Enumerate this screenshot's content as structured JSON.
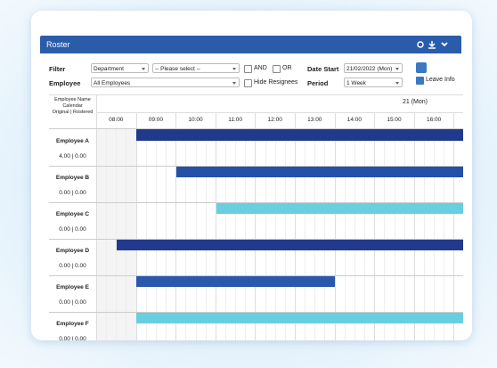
{
  "header": {
    "title": "Roster"
  },
  "filters": {
    "filter_label": "Filter",
    "department": "Department",
    "please_select": "-- Please select --",
    "and": "AND",
    "or": "OR",
    "date_start_label": "Date Start",
    "date_start": "21/02/2022 (Mon)",
    "employee_label": "Employee",
    "employee": "All Employees",
    "hide_resignees": "Hide Resignees",
    "period_label": "Period",
    "period": "1 Week",
    "leave_info": "Leave Info"
  },
  "grid": {
    "column_header": [
      "Employee Name",
      "Calendar",
      "Original | Rostered"
    ],
    "date": "21 (Mon)",
    "times": [
      "08:00",
      "09:00",
      "10:00",
      "11:00",
      "12:00",
      "13:00",
      "14:00",
      "15:00",
      "16:00"
    ]
  },
  "employees": [
    {
      "name": "Employee A",
      "hours": "4.00 | 0.00"
    },
    {
      "name": "Employee B",
      "hours": "0.00 | 0.00"
    },
    {
      "name": "Employee C",
      "hours": "0.00 | 0.00"
    },
    {
      "name": "Employee D",
      "hours": "0.00 | 0.00"
    },
    {
      "name": "Employee E",
      "hours": "0.00 | 0.00"
    },
    {
      "name": "Employee F",
      "hours": "0.00 | 0.00"
    }
  ]
}
